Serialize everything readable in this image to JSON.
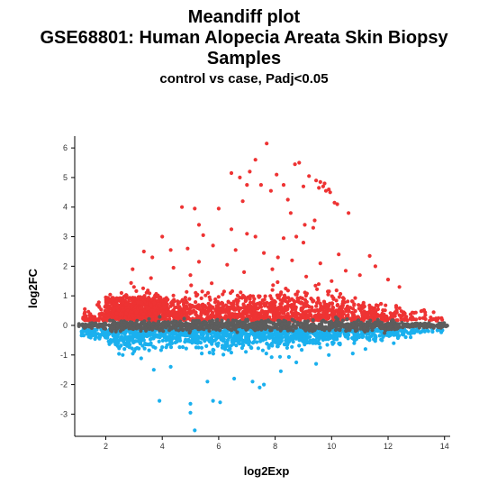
{
  "chart_data": {
    "type": "scatter",
    "title": "Meandiff plot",
    "title_lines": [
      "GSE68801: Human Alopecia Areata Skin Biopsy",
      "Samples"
    ],
    "subtitle": "control vs case, Padj<0.05",
    "xlabel": "log2Exp",
    "ylabel": "log2FC",
    "xlim": [
      0.9,
      14.2
    ],
    "ylim": [
      -3.75,
      6.4
    ],
    "xticks": [
      2,
      4,
      6,
      8,
      10,
      12,
      14
    ],
    "yticks": [
      -3,
      -2,
      -1,
      0,
      1,
      2,
      3,
      4,
      5,
      6
    ],
    "grid": false,
    "legend": "none",
    "colors": {
      "up": "#ee3333",
      "down": "#1ab0ee",
      "ns": "#5d5d5d"
    },
    "series": [
      {
        "group": "up",
        "points": [
          [
            7.7,
            6.15
          ],
          [
            7.3,
            5.6
          ],
          [
            8.7,
            5.45
          ],
          [
            8.85,
            5.5
          ],
          [
            9.2,
            5.05
          ],
          [
            9.45,
            4.9
          ],
          [
            9.6,
            4.85
          ],
          [
            9.7,
            4.7
          ],
          [
            9.8,
            4.55
          ],
          [
            9.95,
            4.5
          ],
          [
            9.75,
            4.8
          ],
          [
            9.55,
            4.65
          ],
          [
            9.9,
            4.6
          ],
          [
            10.1,
            4.15
          ],
          [
            10.2,
            4.1
          ],
          [
            10.6,
            3.8
          ],
          [
            9.0,
            4.7
          ],
          [
            8.3,
            4.75
          ],
          [
            8.05,
            5.1
          ],
          [
            7.0,
            4.75
          ],
          [
            6.75,
            5.0
          ],
          [
            7.1,
            5.2
          ],
          [
            6.45,
            5.15
          ],
          [
            6.85,
            4.2
          ],
          [
            7.5,
            4.75
          ],
          [
            7.85,
            4.55
          ],
          [
            8.45,
            4.25
          ],
          [
            8.55,
            3.8
          ],
          [
            9.4,
            3.55
          ],
          [
            9.35,
            3.3
          ],
          [
            9.05,
            3.4
          ],
          [
            8.75,
            3.0
          ],
          [
            4.7,
            4.0
          ],
          [
            5.15,
            3.95
          ],
          [
            6.0,
            3.95
          ],
          [
            5.3,
            3.4
          ],
          [
            5.45,
            3.05
          ],
          [
            6.45,
            3.25
          ],
          [
            7.0,
            3.1
          ],
          [
            7.3,
            3.0
          ],
          [
            8.3,
            2.95
          ],
          [
            9.0,
            2.8
          ],
          [
            10.25,
            2.4
          ],
          [
            11.35,
            2.35
          ],
          [
            11.55,
            2.0
          ],
          [
            4.0,
            3.0
          ],
          [
            4.3,
            2.55
          ],
          [
            3.35,
            2.5
          ],
          [
            3.65,
            2.3
          ],
          [
            2.95,
            1.9
          ],
          [
            4.9,
            2.6
          ],
          [
            5.8,
            2.7
          ],
          [
            6.6,
            2.55
          ],
          [
            7.6,
            2.45
          ],
          [
            8.1,
            2.3
          ],
          [
            8.6,
            2.2
          ],
          [
            9.6,
            2.1
          ],
          [
            10.5,
            1.85
          ],
          [
            11.0,
            1.7
          ],
          [
            12.0,
            1.55
          ],
          [
            12.4,
            1.3
          ],
          [
            2.3,
            0.9
          ],
          [
            3.6,
            1.6
          ],
          [
            4.4,
            1.95
          ],
          [
            5.3,
            2.15
          ],
          [
            6.3,
            2.05
          ],
          [
            6.9,
            1.8
          ],
          [
            7.9,
            1.9
          ],
          [
            9.1,
            1.65
          ],
          [
            10.0,
            1.5
          ],
          [
            5.0,
            1.7
          ],
          [
            3.0,
            1.3
          ]
        ]
      },
      {
        "group": "down",
        "points": [
          [
            5.15,
            -3.55
          ],
          [
            5.0,
            -2.65
          ],
          [
            6.05,
            -2.6
          ],
          [
            5.8,
            -2.55
          ],
          [
            3.9,
            -2.55
          ],
          [
            5.0,
            -2.95
          ],
          [
            7.6,
            -2.0
          ],
          [
            7.45,
            -2.1
          ],
          [
            7.2,
            -1.9
          ],
          [
            8.2,
            -1.55
          ],
          [
            6.55,
            -1.8
          ],
          [
            8.75,
            -1.25
          ],
          [
            9.45,
            -1.3
          ],
          [
            10.75,
            -0.95
          ],
          [
            11.2,
            -0.8
          ],
          [
            12.2,
            -0.6
          ],
          [
            12.8,
            -0.4
          ],
          [
            3.7,
            -1.5
          ],
          [
            4.3,
            -1.4
          ],
          [
            2.6,
            -1.0
          ],
          [
            5.6,
            -1.9
          ],
          [
            9.9,
            -1.0
          ],
          [
            10.8,
            -0.6
          ]
        ]
      }
    ]
  }
}
